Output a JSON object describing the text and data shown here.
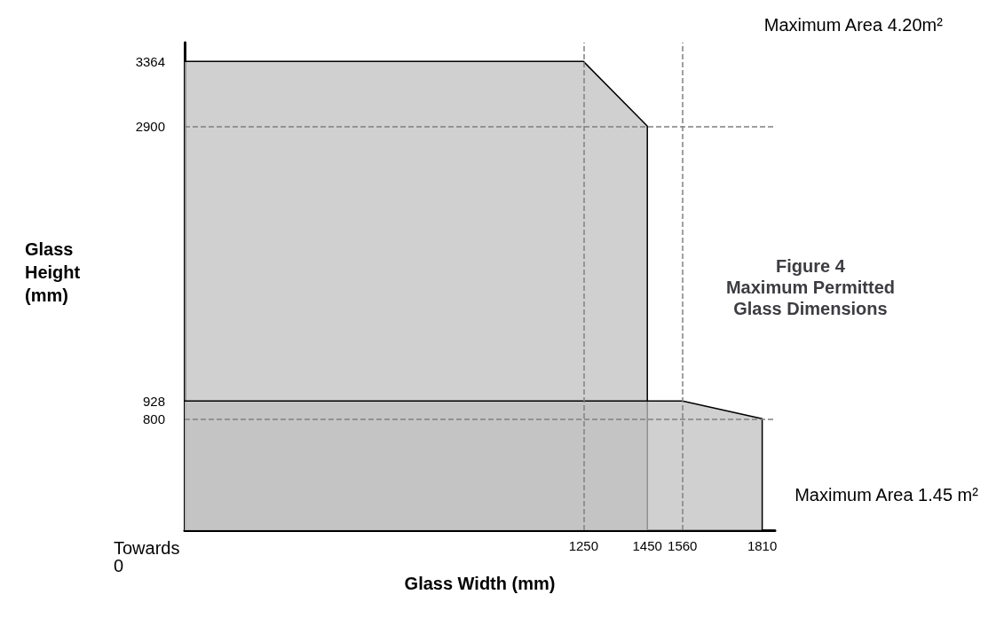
{
  "chart_data": {
    "type": "area",
    "title": "Figure 4\nMaximum Permitted\nGlass Dimensions",
    "xlabel": "Glass Width (mm)",
    "ylabel": "Glass\nHeight\n(mm)",
    "series": [
      {
        "x": [
          0,
          1250,
          1450,
          1450
        ],
        "values": [
          3364,
          3364,
          2900,
          0
        ],
        "color": "#c0c0c0"
      },
      {
        "x": [
          0,
          1560,
          1810,
          1810
        ],
        "values": [
          928,
          928,
          800,
          0
        ],
        "color": "#c0c0c0"
      }
    ],
    "xlim": [
      0,
      1850
    ],
    "ylim": [
      0,
      3500
    ],
    "xticks": [
      1250,
      1450,
      1560,
      1810
    ],
    "yticks": [
      800,
      928,
      2900,
      3364
    ],
    "ref_lines": [
      {
        "axis": "x",
        "value": 1250,
        "line_style": "dashed",
        "color": "#808080"
      },
      {
        "axis": "x",
        "value": 1560,
        "line_style": "dashed",
        "color": "#808080"
      },
      {
        "axis": "y",
        "value": 2900,
        "line_style": "dashed",
        "color": "#808080"
      },
      {
        "axis": "y",
        "value": 800,
        "line_style": "dashed",
        "color": "#808080"
      }
    ],
    "annotations": [
      "Maximum Area 4.20m²",
      "Maximum Area 1.45 m²",
      "Towards\n0"
    ]
  }
}
